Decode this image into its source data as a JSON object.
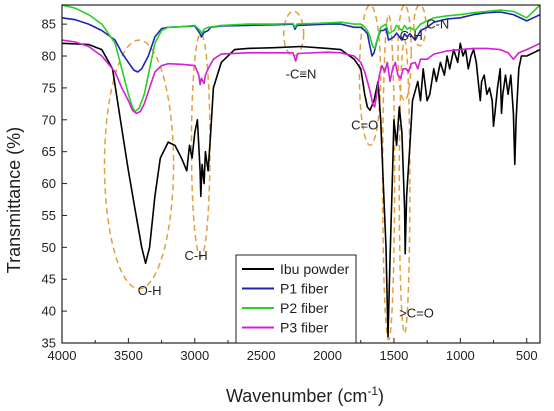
{
  "chart_data": {
    "type": "line",
    "xlabel": "Wavenumber (cm",
    "xlabel_sup": "-1",
    "xlabel_close": ")",
    "ylabel": "Transmittance (%)",
    "xlim": [
      4000,
      400
    ],
    "ylim": [
      35,
      88
    ],
    "x_reversed": true,
    "xticks": [
      4000,
      3500,
      3000,
      2500,
      2000,
      1500,
      1000,
      500
    ],
    "yticks": [
      35,
      40,
      45,
      50,
      55,
      60,
      65,
      70,
      75,
      80,
      85
    ],
    "legend_position": "bottom-center",
    "series": [
      {
        "name": "Ibu powder",
        "color": "#000000",
        "points": [
          [
            4000,
            82
          ],
          [
            3800,
            81.8
          ],
          [
            3700,
            81
          ],
          [
            3620,
            78
          ],
          [
            3560,
            70
          ],
          [
            3500,
            62
          ],
          [
            3450,
            56
          ],
          [
            3400,
            50
          ],
          [
            3370,
            47.5
          ],
          [
            3340,
            50
          ],
          [
            3300,
            58
          ],
          [
            3260,
            64
          ],
          [
            3200,
            66.5
          ],
          [
            3150,
            66
          ],
          [
            3100,
            64
          ],
          [
            3060,
            62
          ],
          [
            3040,
            66
          ],
          [
            3020,
            64
          ],
          [
            3000,
            68
          ],
          [
            2980,
            70
          ],
          [
            2960,
            62
          ],
          [
            2955,
            58
          ],
          [
            2945,
            63
          ],
          [
            2930,
            60
          ],
          [
            2920,
            65
          ],
          [
            2900,
            62
          ],
          [
            2880,
            68
          ],
          [
            2860,
            75
          ],
          [
            2800,
            79
          ],
          [
            2700,
            81
          ],
          [
            2600,
            81.2
          ],
          [
            2400,
            81.3
          ],
          [
            2200,
            81.5
          ],
          [
            2000,
            81.2
          ],
          [
            1900,
            81
          ],
          [
            1800,
            79.5
          ],
          [
            1750,
            78
          ],
          [
            1720,
            74
          ],
          [
            1700,
            72
          ],
          [
            1680,
            71.5
          ],
          [
            1650,
            73
          ],
          [
            1620,
            76
          ],
          [
            1600,
            70
          ],
          [
            1580,
            60
          ],
          [
            1560,
            50
          ],
          [
            1545,
            36
          ],
          [
            1530,
            48
          ],
          [
            1510,
            62
          ],
          [
            1500,
            70
          ],
          [
            1480,
            66
          ],
          [
            1460,
            72
          ],
          [
            1440,
            68
          ],
          [
            1420,
            56
          ],
          [
            1415,
            49
          ],
          [
            1405,
            58
          ],
          [
            1380,
            66
          ],
          [
            1360,
            73
          ],
          [
            1320,
            76
          ],
          [
            1300,
            73
          ],
          [
            1280,
            78
          ],
          [
            1250,
            73
          ],
          [
            1230,
            74
          ],
          [
            1200,
            78
          ],
          [
            1180,
            76
          ],
          [
            1150,
            79
          ],
          [
            1120,
            77
          ],
          [
            1100,
            80
          ],
          [
            1080,
            78
          ],
          [
            1050,
            81
          ],
          [
            1020,
            79
          ],
          [
            1000,
            82
          ],
          [
            980,
            80
          ],
          [
            960,
            81
          ],
          [
            940,
            78
          ],
          [
            920,
            80
          ],
          [
            900,
            81
          ],
          [
            880,
            79
          ],
          [
            860,
            75
          ],
          [
            850,
            73
          ],
          [
            840,
            76
          ],
          [
            820,
            77
          ],
          [
            800,
            74
          ],
          [
            780,
            75
          ],
          [
            760,
            73
          ],
          [
            750,
            69
          ],
          [
            740,
            71
          ],
          [
            720,
            75
          ],
          [
            700,
            78
          ],
          [
            690,
            71
          ],
          [
            680,
            74
          ],
          [
            660,
            77
          ],
          [
            640,
            74
          ],
          [
            620,
            77
          ],
          [
            600,
            71
          ],
          [
            590,
            63
          ],
          [
            580,
            70
          ],
          [
            560,
            78
          ],
          [
            540,
            80
          ],
          [
            500,
            80
          ],
          [
            450,
            80.5
          ],
          [
            400,
            81
          ]
        ]
      },
      {
        "name": "P1 fiber",
        "color": "#1f24b3",
        "points": [
          [
            4000,
            86
          ],
          [
            3900,
            85.7
          ],
          [
            3800,
            85
          ],
          [
            3700,
            84
          ],
          [
            3600,
            82.5
          ],
          [
            3550,
            80.5
          ],
          [
            3500,
            79
          ],
          [
            3460,
            77.8
          ],
          [
            3430,
            77.5
          ],
          [
            3400,
            78
          ],
          [
            3350,
            80
          ],
          [
            3300,
            83
          ],
          [
            3250,
            84.3
          ],
          [
            3200,
            84.5
          ],
          [
            3100,
            84.6
          ],
          [
            3000,
            84.7
          ],
          [
            2960,
            83.5
          ],
          [
            2950,
            83
          ],
          [
            2930,
            83.7
          ],
          [
            2900,
            84
          ],
          [
            2880,
            84.5
          ],
          [
            2800,
            84.7
          ],
          [
            2600,
            84.8
          ],
          [
            2400,
            84.9
          ],
          [
            2260,
            85
          ],
          [
            2245,
            84.2
          ],
          [
            2230,
            84.8
          ],
          [
            2000,
            85
          ],
          [
            1900,
            85
          ],
          [
            1800,
            84.5
          ],
          [
            1750,
            84.5
          ],
          [
            1720,
            84
          ],
          [
            1700,
            83.5
          ],
          [
            1680,
            81.5
          ],
          [
            1665,
            80
          ],
          [
            1650,
            80.5
          ],
          [
            1620,
            83
          ],
          [
            1600,
            84
          ],
          [
            1580,
            84
          ],
          [
            1560,
            84.3
          ],
          [
            1540,
            82.5
          ],
          [
            1500,
            83
          ],
          [
            1480,
            83.6
          ],
          [
            1440,
            82.5
          ],
          [
            1420,
            83.5
          ],
          [
            1400,
            83
          ],
          [
            1380,
            83.5
          ],
          [
            1360,
            83
          ],
          [
            1340,
            82.5
          ],
          [
            1300,
            84
          ],
          [
            1250,
            84.5
          ],
          [
            1200,
            85.3
          ],
          [
            1100,
            85.8
          ],
          [
            1000,
            86
          ],
          [
            900,
            86.5
          ],
          [
            800,
            86.8
          ],
          [
            700,
            86.9
          ],
          [
            600,
            86.5
          ],
          [
            500,
            85.5
          ],
          [
            450,
            86
          ],
          [
            400,
            86.5
          ]
        ]
      },
      {
        "name": "P2 fiber",
        "color": "#27d127",
        "points": [
          [
            4000,
            88
          ],
          [
            3900,
            87.5
          ],
          [
            3800,
            86.5
          ],
          [
            3700,
            85
          ],
          [
            3600,
            82
          ],
          [
            3550,
            78
          ],
          [
            3500,
            74
          ],
          [
            3470,
            72
          ],
          [
            3450,
            71.3
          ],
          [
            3420,
            71.8
          ],
          [
            3380,
            74
          ],
          [
            3340,
            78
          ],
          [
            3300,
            82
          ],
          [
            3250,
            84
          ],
          [
            3200,
            84.5
          ],
          [
            3100,
            84.6
          ],
          [
            3000,
            84.8
          ],
          [
            2960,
            84
          ],
          [
            2950,
            83.5
          ],
          [
            2930,
            84.2
          ],
          [
            2900,
            84.5
          ],
          [
            2800,
            84.8
          ],
          [
            2600,
            85
          ],
          [
            2400,
            85
          ],
          [
            2260,
            85.1
          ],
          [
            2245,
            84.5
          ],
          [
            2230,
            85
          ],
          [
            2000,
            85.2
          ],
          [
            1900,
            85.3
          ],
          [
            1800,
            85
          ],
          [
            1750,
            85
          ],
          [
            1720,
            84.5
          ],
          [
            1700,
            84
          ],
          [
            1680,
            83
          ],
          [
            1660,
            81.5
          ],
          [
            1645,
            81.2
          ],
          [
            1620,
            83
          ],
          [
            1600,
            84.5
          ],
          [
            1560,
            85
          ],
          [
            1540,
            83.5
          ],
          [
            1500,
            84
          ],
          [
            1480,
            84.8
          ],
          [
            1440,
            84
          ],
          [
            1420,
            84.8
          ],
          [
            1400,
            84.2
          ],
          [
            1380,
            84.5
          ],
          [
            1360,
            84.2
          ],
          [
            1340,
            84
          ],
          [
            1300,
            85
          ],
          [
            1250,
            85.5
          ],
          [
            1200,
            86
          ],
          [
            1100,
            86.3
          ],
          [
            1000,
            86.5
          ],
          [
            900,
            86.8
          ],
          [
            800,
            87
          ],
          [
            700,
            87.2
          ],
          [
            600,
            87
          ],
          [
            500,
            86
          ],
          [
            450,
            87
          ],
          [
            400,
            88
          ]
        ]
      },
      {
        "name": "P3 fiber",
        "color": "#d51fd5",
        "points": [
          [
            4000,
            82.5
          ],
          [
            3900,
            82.2
          ],
          [
            3800,
            81.5
          ],
          [
            3700,
            80
          ],
          [
            3600,
            77.5
          ],
          [
            3550,
            75
          ],
          [
            3500,
            73
          ],
          [
            3470,
            71.5
          ],
          [
            3440,
            71
          ],
          [
            3410,
            71.3
          ],
          [
            3380,
            72.5
          ],
          [
            3340,
            75
          ],
          [
            3300,
            77.5
          ],
          [
            3250,
            78.5
          ],
          [
            3200,
            78.8
          ],
          [
            3100,
            78.7
          ],
          [
            3000,
            78.5
          ],
          [
            2970,
            77
          ],
          [
            2960,
            75.5
          ],
          [
            2950,
            76.5
          ],
          [
            2930,
            75.7
          ],
          [
            2920,
            77
          ],
          [
            2900,
            78
          ],
          [
            2860,
            79.5
          ],
          [
            2800,
            80.3
          ],
          [
            2600,
            80.5
          ],
          [
            2400,
            80.5
          ],
          [
            2260,
            80.5
          ],
          [
            2240,
            79.2
          ],
          [
            2225,
            80.4
          ],
          [
            2000,
            80.6
          ],
          [
            1900,
            80.5
          ],
          [
            1800,
            80
          ],
          [
            1750,
            79
          ],
          [
            1720,
            77.5
          ],
          [
            1700,
            76
          ],
          [
            1680,
            74.5
          ],
          [
            1660,
            72.5
          ],
          [
            1645,
            72
          ],
          [
            1630,
            74
          ],
          [
            1610,
            77
          ],
          [
            1590,
            78.5
          ],
          [
            1570,
            77.5
          ],
          [
            1550,
            79
          ],
          [
            1530,
            76
          ],
          [
            1510,
            78
          ],
          [
            1490,
            79
          ],
          [
            1470,
            77
          ],
          [
            1450,
            76.5
          ],
          [
            1430,
            78
          ],
          [
            1410,
            78
          ],
          [
            1390,
            77.5
          ],
          [
            1370,
            78.8
          ],
          [
            1340,
            79
          ],
          [
            1320,
            78
          ],
          [
            1300,
            79.5
          ],
          [
            1250,
            79.5
          ],
          [
            1200,
            80.3
          ],
          [
            1100,
            80.8
          ],
          [
            1000,
            81
          ],
          [
            900,
            81.2
          ],
          [
            800,
            81.2
          ],
          [
            700,
            81
          ],
          [
            640,
            80.5
          ],
          [
            600,
            79.5
          ],
          [
            560,
            80.5
          ],
          [
            500,
            81
          ],
          [
            450,
            81.5
          ],
          [
            400,
            82
          ]
        ]
      }
    ],
    "annotations": [
      {
        "text": "O-H",
        "x": 3340,
        "y": 42.5
      },
      {
        "text": "C-H",
        "x": 2990,
        "y": 48
      },
      {
        "text": "-C≡N",
        "x": 2200,
        "y": 76.5
      },
      {
        "text": "C=O",
        "x": 1720,
        "y": 68.5
      },
      {
        "text": "C-H",
        "x": 1370,
        "y": 82.5
      },
      {
        "text": "C-N",
        "x": 1170,
        "y": 84.3
      },
      {
        "text": ">C=O",
        "x": 1330,
        "y": 39
      }
    ],
    "highlight_ellipses": [
      {
        "cx": 3420,
        "cy": 63,
        "rx": 260,
        "ry": 19.5
      },
      {
        "cx": 2955,
        "cy": 66,
        "rx": 70,
        "ry": 17.5
      },
      {
        "cx": 2255,
        "cy": 83.5,
        "rx": 75,
        "ry": 3.5
      },
      {
        "cx": 1680,
        "cy": 77,
        "rx": 80,
        "ry": 11
      },
      {
        "cx": 1540,
        "cy": 61,
        "rx": 45,
        "ry": 25.5
      },
      {
        "cx": 1420,
        "cy": 80.5,
        "rx": 50,
        "ry": 7.5
      },
      {
        "cx": 1305,
        "cy": 84.8,
        "rx": 45,
        "ry": 3.2
      },
      {
        "cx": 1420,
        "cy": 59.5,
        "rx": 40,
        "ry": 23
      }
    ],
    "highlight_color": "#e39a2d",
    "ellipse_color": "#e0a040"
  }
}
